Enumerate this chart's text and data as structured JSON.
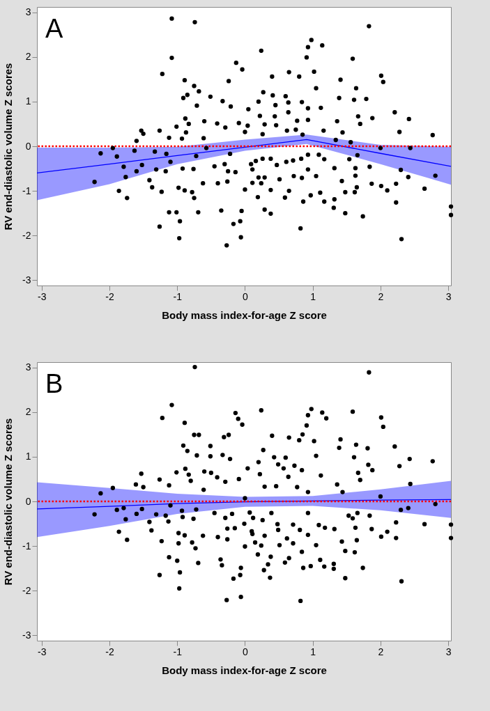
{
  "chart_data": [
    {
      "type": "scatter",
      "annotations": [
        "A"
      ],
      "xlabel": "Body mass index-for-age Z score",
      "ylabel": "RV end-diastolic volume Z scores",
      "xlim": [
        -3.07,
        3.04
      ],
      "xticks": [
        -3,
        -2,
        -1,
        0,
        1,
        2,
        3
      ],
      "ylim": [
        -3.12,
        3.12
      ],
      "yticks": [
        -3,
        -2,
        -1,
        0,
        1,
        2,
        3
      ],
      "ref_lines": [
        {
          "axis": "y",
          "value": 0,
          "color": "#ff0000",
          "line_style": "dotted"
        }
      ],
      "series": [
        {
          "type": "scatter",
          "marker": "circle",
          "color": "#000000",
          "x": [
            -1.08,
            -0.74,
            1.83,
            0.98,
            1.14,
            0.24,
            -1.08,
            1.59,
            0.93,
            0.91,
            -0.13,
            -0.04,
            -1.22,
            2.01,
            2.04,
            -0.89,
            -0.24,
            0.4,
            0.65,
            0.8,
            1.02,
            1.05,
            1.41,
            1.64,
            -0.75,
            -0.85,
            -0.91,
            -0.68,
            -0.51,
            -0.71,
            0.27,
            0.41,
            0.6,
            1.39,
            1.61,
            1.79,
            2.21,
            2.42,
            2.28,
            2.77,
            -0.33,
            -0.21,
            0.05,
            0.2,
            0.45,
            0.64,
            0.84,
            0.93,
            1.12,
            -0.88,
            -0.83,
            -0.6,
            -0.41,
            -0.29,
            -0.09,
            0.04,
            0.22,
            0.29,
            0.44,
            0.64,
            0.77,
            0.93,
            1.36,
            1.67,
            1.7,
            1.88,
            -1.01,
            -0.87,
            -1.53,
            -1.5,
            -1.26,
            -1.12,
            -0.93,
            -0.61,
            0.0,
            0.26,
            0.46,
            0.62,
            0.75,
            0.85,
            1.16,
            1.44,
            1.34,
            1.56,
            -1.6,
            -1.95,
            -2.13,
            -2.22,
            -1.89,
            -1.79,
            -1.76,
            -1.86,
            -1.74,
            -1.63,
            -1.6,
            -1.52,
            -1.33,
            -1.31,
            -1.41,
            -1.37,
            -1.23,
            -1.16,
            -1.17,
            -1.1,
            -0.92,
            -0.98,
            -0.89,
            -1.12,
            -1.01,
            -0.96,
            -1.26,
            -0.97,
            -0.78,
            -0.75,
            -0.69,
            -0.76,
            -0.72,
            -0.57,
            -0.62,
            -0.45,
            -0.4,
            -0.35,
            -0.26,
            -0.25,
            -0.3,
            -0.22,
            -0.14,
            -0.17,
            -0.07,
            -0.06,
            -0.27,
            -0.05,
            0.0,
            0.09,
            0.16,
            0.11,
            0.11,
            0.2,
            0.24,
            0.19,
            0.29,
            0.38,
            0.38,
            0.29,
            0.26,
            0.38,
            0.47,
            0.51,
            0.59,
            0.65,
            0.61,
            0.71,
            0.72,
            0.82,
            0.86,
            0.84,
            0.93,
            0.93,
            0.83,
            0.97,
            1.05,
            1.09,
            1.17,
            1.11,
            1.17,
            1.32,
            1.43,
            1.32,
            1.31,
            1.48,
            1.48,
            1.54,
            1.63,
            1.63,
            1.65,
            1.62,
            1.74,
            1.66,
            1.84,
            1.87,
            2.01,
            2.1,
            2.23,
            2.23,
            2.3,
            2.41,
            2.31,
            2.65,
            2.81,
            3.04,
            3.04,
            2.0,
            2.44
          ],
          "values": [
            2.86,
            2.78,
            2.69,
            2.38,
            2.26,
            2.14,
            1.98,
            1.96,
            2.22,
            1.99,
            1.87,
            1.72,
            1.62,
            1.58,
            1.44,
            1.48,
            1.46,
            1.56,
            1.66,
            1.56,
            1.67,
            1.3,
            1.49,
            1.3,
            1.35,
            1.15,
            1.08,
            1.23,
            1.11,
            0.91,
            1.21,
            1.14,
            1.12,
            1.08,
            1.04,
            1.06,
            0.76,
            0.61,
            0.32,
            0.25,
            1.01,
            0.89,
            0.83,
            1.0,
            0.92,
            0.98,
            0.99,
            0.85,
            0.86,
            0.62,
            0.5,
            0.56,
            0.51,
            0.42,
            0.52,
            0.46,
            0.68,
            0.49,
            0.67,
            0.76,
            0.57,
            0.59,
            0.56,
            0.67,
            0.5,
            0.63,
            0.44,
            0.31,
            0.35,
            0.28,
            0.35,
            0.19,
            0.17,
            0.18,
            0.32,
            0.27,
            0.47,
            0.35,
            0.37,
            0.26,
            0.35,
            0.31,
            0.14,
            0.09,
            0.12,
            -0.04,
            -0.16,
            -0.8,
            -0.23,
            -0.46,
            -0.69,
            -1.0,
            -1.16,
            -0.1,
            -0.56,
            -0.42,
            -0.12,
            -0.52,
            -0.76,
            -0.92,
            -1.02,
            -0.17,
            -0.56,
            -0.35,
            -0.5,
            -0.93,
            -0.99,
            -1.48,
            -1.48,
            -1.68,
            -1.8,
            -2.06,
            -1.03,
            -1.16,
            -1.48,
            -0.51,
            -0.22,
            -0.04,
            -0.83,
            -0.45,
            -0.83,
            -1.44,
            -0.79,
            -0.56,
            -0.4,
            -0.17,
            -0.58,
            -1.74,
            -1.68,
            -2.04,
            -2.22,
            -1.45,
            -0.97,
            -0.4,
            -0.33,
            -0.52,
            -0.82,
            -0.7,
            -0.83,
            -1.14,
            -1.42,
            -1.51,
            -0.98,
            -0.7,
            -0.28,
            -0.28,
            -0.42,
            -0.74,
            -1.15,
            -1.0,
            -0.35,
            -0.32,
            -0.67,
            -1.84,
            -1.24,
            -0.71,
            -0.52,
            -0.19,
            -0.28,
            -1.1,
            -0.67,
            -0.19,
            -0.29,
            -1.04,
            -1.24,
            -0.49,
            -0.78,
            -1.19,
            -1.38,
            -1.5,
            -1.03,
            -0.29,
            -0.49,
            -0.66,
            -0.92,
            -1.03,
            -1.57,
            -0.2,
            -0.46,
            -0.84,
            -0.89,
            -0.99,
            -0.84,
            -1.26,
            -0.53,
            -0.69,
            -2.08,
            -0.95,
            -0.66,
            -1.35,
            -1.54,
            -0.04,
            -0.04
          ]
        },
        {
          "type": "line",
          "color": "#0000ff",
          "x": [
            -3.07,
            -2,
            -1,
            0,
            0.91,
            2,
            3.04
          ],
          "values": [
            -0.6,
            -0.4,
            -0.21,
            -0.02,
            0.15,
            -0.16,
            -0.45
          ],
          "lower": [
            -1.21,
            -0.85,
            -0.4,
            -0.1,
            0.05,
            -0.4,
            -0.86
          ],
          "upper": [
            -0.03,
            -0.03,
            -0.01,
            0.15,
            0.26,
            0.03,
            -0.01
          ]
        }
      ]
    },
    {
      "type": "scatter",
      "annotations": [
        "B"
      ],
      "xlabel": "Body mass index-for-age Z score",
      "ylabel": "RV end-diastolic volume Z scores",
      "xlim": [
        -3.07,
        3.04
      ],
      "xticks": [
        -3,
        -2,
        -1,
        0,
        1,
        2,
        3
      ],
      "ylim": [
        -3.12,
        3.12
      ],
      "yticks": [
        -3,
        -2,
        -1,
        0,
        1,
        2,
        3
      ],
      "ref_lines": [
        {
          "axis": "y",
          "value": 0,
          "color": "#ff0000",
          "line_style": "dotted"
        }
      ],
      "series": [
        {
          "type": "scatter",
          "marker": "circle",
          "color": "#000000",
          "x": [
            -0.74,
            1.83,
            -1.08,
            0.24,
            0.98,
            1.14,
            1.2,
            1.59,
            0.93,
            -0.14,
            -0.1,
            -0.04,
            -1.22,
            -0.89,
            2.01,
            2.04,
            -0.75,
            -0.68,
            -0.31,
            -0.24,
            0.4,
            0.65,
            0.8,
            0.85,
            0.91,
            1.02,
            1.41,
            1.64,
            1.39,
            1.81,
            -0.91,
            -0.85,
            -0.71,
            -0.51,
            -0.51,
            0.27,
            0.43,
            0.6,
            1.05,
            1.61,
            2.21,
            2.43,
            2.77,
            2.28,
            1.82,
            1.67,
            1.88,
            -0.33,
            -0.22,
            0.04,
            0.2,
            0.49,
            0.57,
            0.73,
            0.84,
            1.12,
            -1.01,
            -0.88,
            -0.83,
            -0.6,
            -0.5,
            -0.41,
            -0.29,
            -0.09,
            0.22,
            0.29,
            0.46,
            0.64,
            0.77,
            0.93,
            1.36,
            1.7,
            2.44,
            -1.53,
            -1.61,
            -1.5,
            -1.26,
            -1.12,
            -0.8,
            -0.61,
            0.0,
            -1.95,
            -2.13,
            1.44,
            2.0,
            -2.22,
            -1.89,
            -1.79,
            -1.76,
            -1.86,
            -1.74,
            -1.6,
            -1.52,
            -1.41,
            -1.38,
            -1.31,
            -1.23,
            -1.17,
            -1.13,
            -1.1,
            -0.93,
            -0.92,
            -0.98,
            -0.98,
            -0.89,
            -1.12,
            -1.0,
            -0.96,
            -1.26,
            -0.97,
            -0.78,
            -0.73,
            -0.69,
            -0.76,
            -0.72,
            -0.62,
            -0.45,
            -0.4,
            -0.36,
            -0.34,
            -0.26,
            -0.26,
            -0.29,
            -0.19,
            -0.15,
            -0.17,
            -0.07,
            -0.06,
            -0.27,
            -0.06,
            0.0,
            -0.01,
            0.07,
            0.12,
            0.1,
            0.11,
            0.15,
            0.24,
            0.19,
            0.28,
            0.37,
            0.34,
            0.38,
            0.29,
            0.26,
            0.39,
            0.48,
            0.49,
            0.51,
            0.59,
            0.65,
            0.62,
            0.71,
            0.71,
            0.81,
            0.82,
            0.86,
            0.84,
            0.93,
            0.93,
            0.97,
            1.05,
            1.09,
            1.18,
            1.11,
            1.17,
            1.32,
            1.43,
            1.31,
            1.31,
            1.48,
            1.48,
            1.53,
            1.59,
            1.63,
            1.65,
            1.62,
            1.74,
            1.66,
            1.84,
            1.87,
            2.01,
            2.1,
            2.23,
            2.23,
            2.3,
            2.41,
            2.31,
            2.65,
            2.81,
            3.04,
            3.04
          ],
          "values": [
            3.01,
            2.89,
            2.16,
            2.04,
            2.07,
            1.99,
            1.86,
            2.01,
            1.93,
            1.98,
            1.85,
            1.72,
            1.87,
            1.76,
            1.88,
            1.67,
            1.49,
            1.49,
            1.44,
            1.49,
            1.47,
            1.43,
            1.37,
            1.5,
            1.7,
            1.35,
            1.39,
            1.27,
            1.2,
            1.19,
            1.25,
            1.13,
            1.03,
            1.24,
            1.01,
            1.15,
            0.99,
            0.98,
            1.02,
            0.99,
            1.23,
            0.95,
            0.9,
            0.79,
            0.82,
            0.64,
            0.7,
            1.04,
            0.95,
            0.74,
            0.88,
            0.83,
            0.74,
            0.8,
            0.7,
            0.58,
            0.65,
            0.73,
            0.6,
            0.67,
            0.64,
            0.54,
            0.44,
            0.5,
            0.61,
            0.33,
            0.34,
            0.55,
            0.32,
            0.21,
            0.38,
            0.48,
            0.39,
            0.62,
            0.38,
            0.32,
            0.49,
            0.36,
            0.46,
            0.26,
            0.07,
            0.3,
            0.18,
            0.21,
            0.11,
            -0.29,
            -0.19,
            -0.15,
            -0.4,
            -0.68,
            -0.86,
            -0.28,
            -0.17,
            -0.46,
            -0.65,
            -0.29,
            -0.89,
            -0.32,
            -0.45,
            -0.09,
            -0.21,
            -0.35,
            -0.71,
            -0.94,
            -0.76,
            -1.25,
            -1.33,
            -1.59,
            -1.65,
            -1.95,
            -0.92,
            -1.05,
            -1.38,
            -0.39,
            -0.18,
            -0.77,
            -0.26,
            -0.8,
            -1.3,
            -1.43,
            -0.85,
            -0.61,
            -0.37,
            -0.28,
            -0.6,
            -1.73,
            -1.65,
            -2.14,
            -2.21,
            -1.49,
            -1.01,
            -0.5,
            -0.25,
            -0.37,
            -0.67,
            -0.73,
            -0.92,
            -0.99,
            -1.19,
            -1.54,
            -1.71,
            -1.41,
            -1.24,
            -0.77,
            -0.42,
            -0.26,
            -0.51,
            -0.64,
            -0.98,
            -1.37,
            -1.27,
            -0.83,
            -0.94,
            -0.52,
            -0.64,
            -2.23,
            -1.49,
            -1.13,
            -0.75,
            -0.26,
            -1.45,
            -0.98,
            -0.53,
            -0.59,
            -1.31,
            -1.46,
            -0.62,
            -0.9,
            -1.4,
            -1.51,
            -1.72,
            -1.11,
            -0.32,
            -0.38,
            -0.59,
            -0.87,
            -1.14,
            -1.49,
            -0.26,
            -0.32,
            -0.62,
            -0.79,
            -0.68,
            -0.47,
            -0.82,
            -0.19,
            -0.15,
            -1.79,
            -0.51,
            -0.06,
            -0.52,
            -0.82
          ]
        },
        {
          "type": "line",
          "color": "#0000ff",
          "x": [
            -3.07,
            -2,
            -1,
            0,
            1,
            2,
            3.04
          ],
          "values": [
            -0.17,
            -0.11,
            -0.05,
            -0.01,
            0.01,
            0.03,
            0.04
          ],
          "lower": [
            -0.8,
            -0.55,
            -0.28,
            -0.12,
            -0.1,
            -0.2,
            -0.37
          ],
          "upper": [
            0.43,
            0.3,
            0.17,
            0.1,
            0.12,
            0.27,
            0.46
          ]
        }
      ]
    }
  ]
}
